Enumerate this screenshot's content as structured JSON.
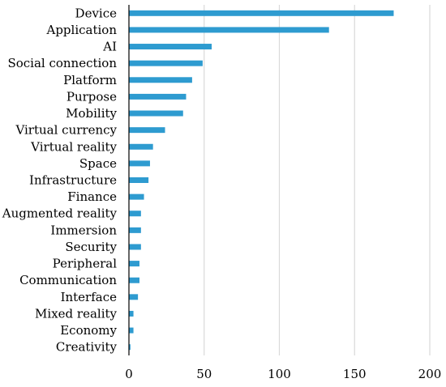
{
  "chart_data": {
    "type": "bar",
    "orientation": "horizontal",
    "categories": [
      "Device",
      "Application",
      "AI",
      "Social connection",
      "Platform",
      "Purpose",
      "Mobility",
      "Virtual currency",
      "Virtual reality",
      "Space",
      "Infrastructure",
      "Finance",
      "Augmented reality",
      "Immersion",
      "Security",
      "Peripheral",
      "Communication",
      "Interface",
      "Mixed reality",
      "Economy",
      "Creativity"
    ],
    "values": [
      176,
      133,
      55,
      49,
      42,
      38,
      36,
      24,
      16,
      14,
      13,
      10,
      8,
      8,
      8,
      7,
      7,
      6,
      3,
      3,
      1
    ],
    "xlim": [
      0,
      200
    ],
    "xticks": [
      0,
      50,
      100,
      150,
      200
    ],
    "title": "",
    "xlabel": "",
    "ylabel": "",
    "grid": "vertical",
    "legend": "none",
    "bar_color": "#2e9bd0",
    "grid_color": "#d9d9d9",
    "axis_color": "#000000"
  }
}
